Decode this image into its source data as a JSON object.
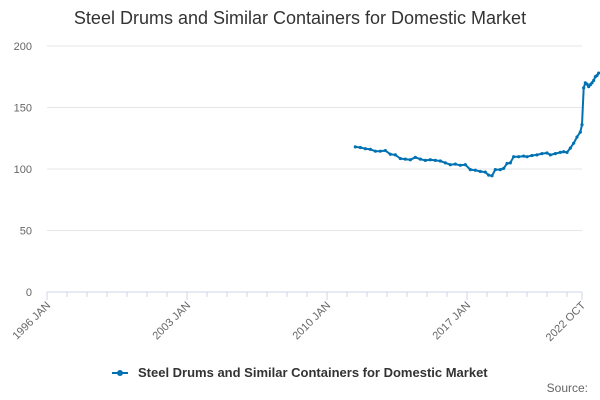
{
  "chart_data": {
    "type": "line",
    "title": "Steel Drums and Similar Containers for Domestic Market",
    "xlabel": "",
    "ylabel": "",
    "x_range": [
      "1996-01",
      "2022-10"
    ],
    "ylim": [
      0,
      200
    ],
    "y_ticks": [
      0,
      50,
      100,
      150,
      200
    ],
    "x_ticks": [
      {
        "label": "1996 JAN",
        "date": "1996-01"
      },
      {
        "label": "2003 JAN",
        "date": "2003-01"
      },
      {
        "label": "2010 JAN",
        "date": "2010-01"
      },
      {
        "label": "2017 JAN",
        "date": "2017-01"
      },
      {
        "label": "2022 OCT",
        "date": "2022-10"
      }
    ],
    "grid": "horizontal",
    "legend_position": "bottom",
    "series": [
      {
        "name": "Steel Drums and Similar Containers for Domestic Market",
        "color": "#0072b2",
        "points": [
          [
            "2011-06",
            118.0
          ],
          [
            "2011-09",
            117.5
          ],
          [
            "2011-12",
            116.5
          ],
          [
            "2012-03",
            116.0
          ],
          [
            "2012-06",
            114.5
          ],
          [
            "2012-09",
            114.5
          ],
          [
            "2012-12",
            115.0
          ],
          [
            "2013-03",
            112.0
          ],
          [
            "2013-06",
            111.5
          ],
          [
            "2013-09",
            108.5
          ],
          [
            "2013-12",
            108.0
          ],
          [
            "2014-03",
            107.5
          ],
          [
            "2014-06",
            109.5
          ],
          [
            "2014-09",
            108.0
          ],
          [
            "2014-12",
            107.0
          ],
          [
            "2015-03",
            107.5
          ],
          [
            "2015-06",
            107.0
          ],
          [
            "2015-09",
            106.5
          ],
          [
            "2015-12",
            105.0
          ],
          [
            "2016-03",
            103.5
          ],
          [
            "2016-06",
            104.0
          ],
          [
            "2016-09",
            103.0
          ],
          [
            "2016-12",
            103.5
          ],
          [
            "2017-03",
            99.5
          ],
          [
            "2017-06",
            99.0
          ],
          [
            "2017-09",
            98.0
          ],
          [
            "2017-12",
            97.5
          ],
          [
            "2018-02",
            95.0
          ],
          [
            "2018-04",
            94.5
          ],
          [
            "2018-06",
            99.5
          ],
          [
            "2018-09",
            99.5
          ],
          [
            "2018-11",
            100.5
          ],
          [
            "2019-01",
            104.5
          ],
          [
            "2019-03",
            105.0
          ],
          [
            "2019-05",
            110.0
          ],
          [
            "2019-08",
            110.0
          ],
          [
            "2019-11",
            110.5
          ],
          [
            "2020-01",
            110.0
          ],
          [
            "2020-04",
            111.0
          ],
          [
            "2020-07",
            111.5
          ],
          [
            "2020-10",
            112.5
          ],
          [
            "2021-01",
            113.0
          ],
          [
            "2021-03",
            111.5
          ],
          [
            "2021-06",
            112.5
          ],
          [
            "2021-09",
            113.5
          ],
          [
            "2021-11",
            114.0
          ],
          [
            "2022-01",
            113.5
          ],
          [
            "2022-03",
            117.0
          ],
          [
            "2022-05",
            121.0
          ],
          [
            "2022-07",
            126.0
          ],
          [
            "2022-09",
            130.0
          ],
          [
            "2022-10",
            136.0
          ],
          [
            "2022-11",
            166.0
          ],
          [
            "2022-12",
            170.0
          ],
          [
            "2023-01",
            169.0
          ],
          [
            "2023-02",
            167.0
          ],
          [
            "2023-03",
            168.5
          ],
          [
            "2023-04",
            170.0
          ],
          [
            "2023-05",
            172.0
          ],
          [
            "2023-06",
            175.0
          ],
          [
            "2023-07",
            176.0
          ],
          [
            "2023-08",
            178.0
          ]
        ]
      }
    ],
    "source_label": "Source:"
  }
}
